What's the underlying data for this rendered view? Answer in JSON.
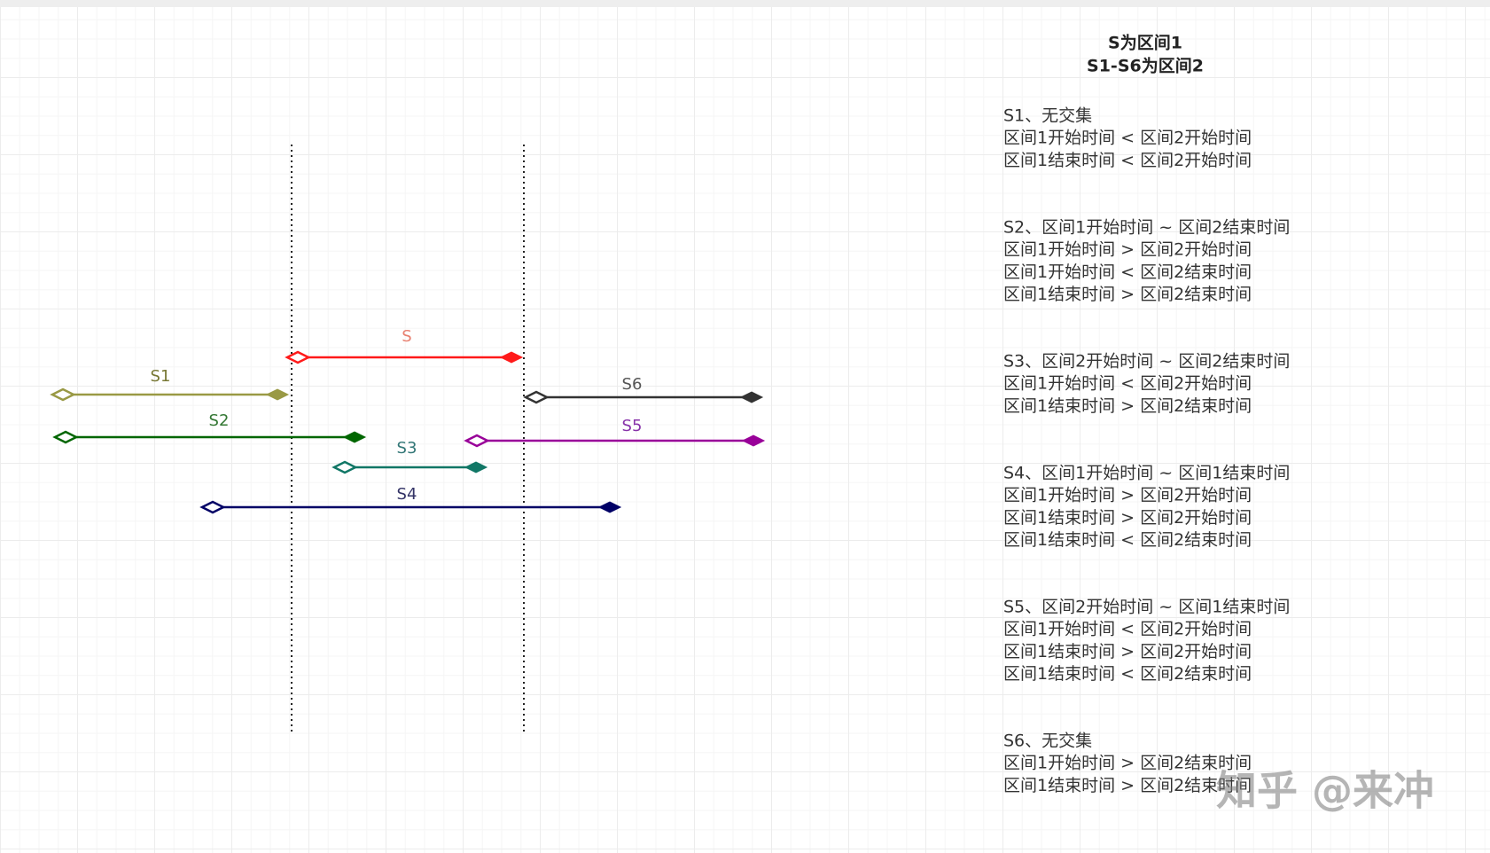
{
  "header": {
    "line1": "S为区间1",
    "line2": "S1-S6为区间2"
  },
  "segments": [
    {
      "label": "S"
    },
    {
      "label": "S1"
    },
    {
      "label": "S2"
    },
    {
      "label": "S3"
    },
    {
      "label": "S4"
    },
    {
      "label": "S5"
    },
    {
      "label": "S6"
    }
  ],
  "notes": [
    {
      "lines": [
        "S1、无交集",
        "区间1开始时间 < 区间2开始时间",
        "区间1结束时间 < 区间2开始时间"
      ]
    },
    {
      "lines": [
        "S2、区间1开始时间 ~ 区间2结束时间",
        "区间1开始时间 > 区间2开始时间",
        "区间1开始时间 < 区间2结束时间",
        "区间1结束时间 > 区间2结束时间"
      ]
    },
    {
      "lines": [
        "S3、区间2开始时间 ~ 区间2结束时间",
        "区间1开始时间 < 区间2开始时间",
        "区间1结束时间 > 区间2结束时间"
      ]
    },
    {
      "lines": [
        "S4、区间1开始时间 ~ 区间1结束时间",
        "区间1开始时间 > 区间2开始时间",
        "区间1结束时间 > 区间2开始时间",
        "区间1结束时间 < 区间2结束时间"
      ]
    },
    {
      "lines": [
        "S5、区间2开始时间 ~ 区间1结束时间",
        "区间1开始时间 < 区间2开始时间",
        "区间1结束时间 > 区间2开始时间",
        "区间1结束时间 < 区间2结束时间"
      ]
    },
    {
      "lines": [
        "S6、无交集",
        "区间1开始时间 > 区间2结束时间",
        "区间1结束时间 > 区间2结束时间"
      ]
    }
  ],
  "watermark": "知乎 @来冲"
}
